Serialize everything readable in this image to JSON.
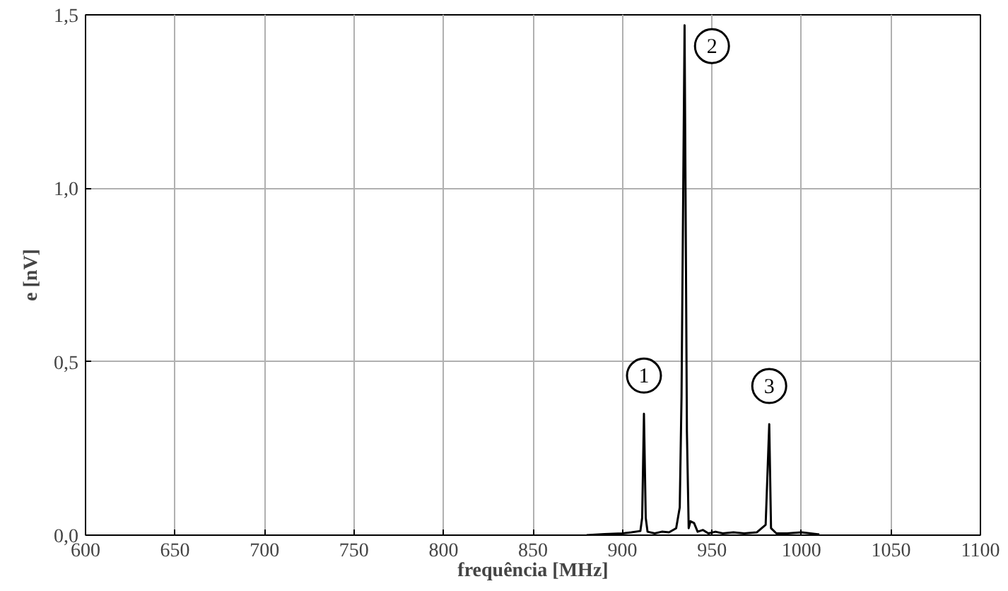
{
  "chart_data": {
    "type": "line",
    "xlabel": "frequência [MHz]",
    "ylabel": "e [nV]",
    "x": [
      880,
      890,
      900,
      905,
      910,
      911,
      912,
      913,
      914,
      918,
      922,
      926,
      930,
      932,
      933,
      934.7,
      936,
      937,
      938,
      940,
      942,
      945,
      948,
      952,
      956,
      962,
      968,
      975,
      980,
      982,
      983,
      986,
      992,
      1000,
      1010
    ],
    "series": [
      {
        "color": "#000000",
        "values": [
          0,
          0.003,
          0.005,
          0.008,
          0.012,
          0.05,
          0.35,
          0.05,
          0.01,
          0.005,
          0.01,
          0.008,
          0.02,
          0.08,
          0.4,
          1.47,
          0.3,
          0.02,
          0.04,
          0.035,
          0.01,
          0.015,
          0.005,
          0.01,
          0.005,
          0.008,
          0.005,
          0.008,
          0.03,
          0.32,
          0.02,
          0.005,
          0.005,
          0.008,
          0.002
        ]
      }
    ],
    "xlim": [
      600,
      1100
    ],
    "xticks": [
      600,
      650,
      700,
      750,
      800,
      850,
      900,
      950,
      1000,
      1050,
      1100
    ],
    "ylim": [
      0,
      1.5
    ],
    "yticks": [
      {
        "value": 0,
        "label": "0,0"
      },
      {
        "value": 0.5,
        "label": "0,5"
      },
      {
        "value": 1,
        "label": "1,0"
      },
      {
        "value": 1.5,
        "label": "1,5"
      }
    ],
    "grid": true,
    "marker": "none",
    "line_style": "solid",
    "annotations": [
      {
        "text": "1",
        "x": 912,
        "y": 0.46
      },
      {
        "text": "2",
        "x": 950,
        "y": 1.41
      },
      {
        "text": "3",
        "x": 982,
        "y": 0.43
      }
    ]
  }
}
